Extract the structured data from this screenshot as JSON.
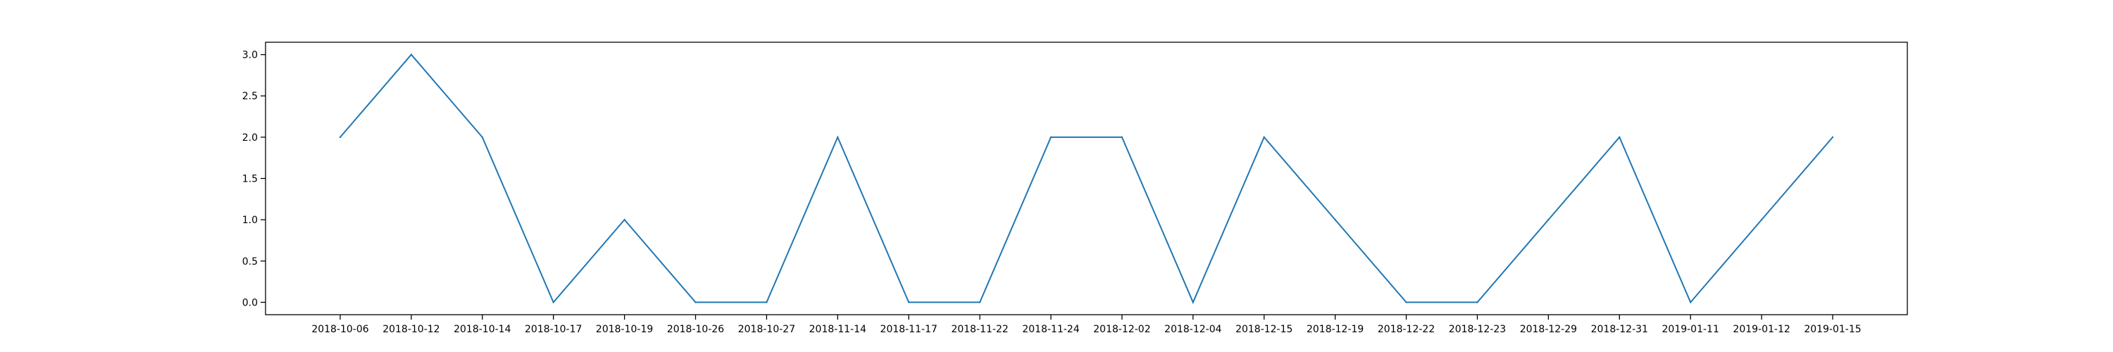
{
  "chart_data": {
    "type": "line",
    "title": "",
    "xlabel": "",
    "ylabel": "",
    "categories": [
      "2018-10-06",
      "2018-10-12",
      "2018-10-14",
      "2018-10-17",
      "2018-10-19",
      "2018-10-26",
      "2018-10-27",
      "2018-11-14",
      "2018-11-17",
      "2018-11-22",
      "2018-11-24",
      "2018-12-02",
      "2018-12-04",
      "2018-12-15",
      "2018-12-19",
      "2018-12-22",
      "2018-12-23",
      "2018-12-29",
      "2018-12-31",
      "2019-01-11",
      "2019-01-12",
      "2019-01-15"
    ],
    "series": [
      {
        "values": [
          2,
          3,
          2,
          0,
          1,
          0,
          0,
          2,
          0,
          0,
          2,
          2,
          0,
          2,
          1,
          0,
          0,
          1,
          2,
          0,
          1,
          2
        ],
        "color": "#1f77b4"
      }
    ],
    "ylim": [
      -0.15,
      3.15
    ],
    "yticks": [
      0.0,
      0.5,
      1.0,
      1.5,
      2.0,
      2.5,
      3.0
    ],
    "ytick_labels": [
      "0.0",
      "0.5",
      "1.0",
      "1.5",
      "2.0",
      "2.5",
      "3.0"
    ],
    "grid": false,
    "legend": "none"
  }
}
